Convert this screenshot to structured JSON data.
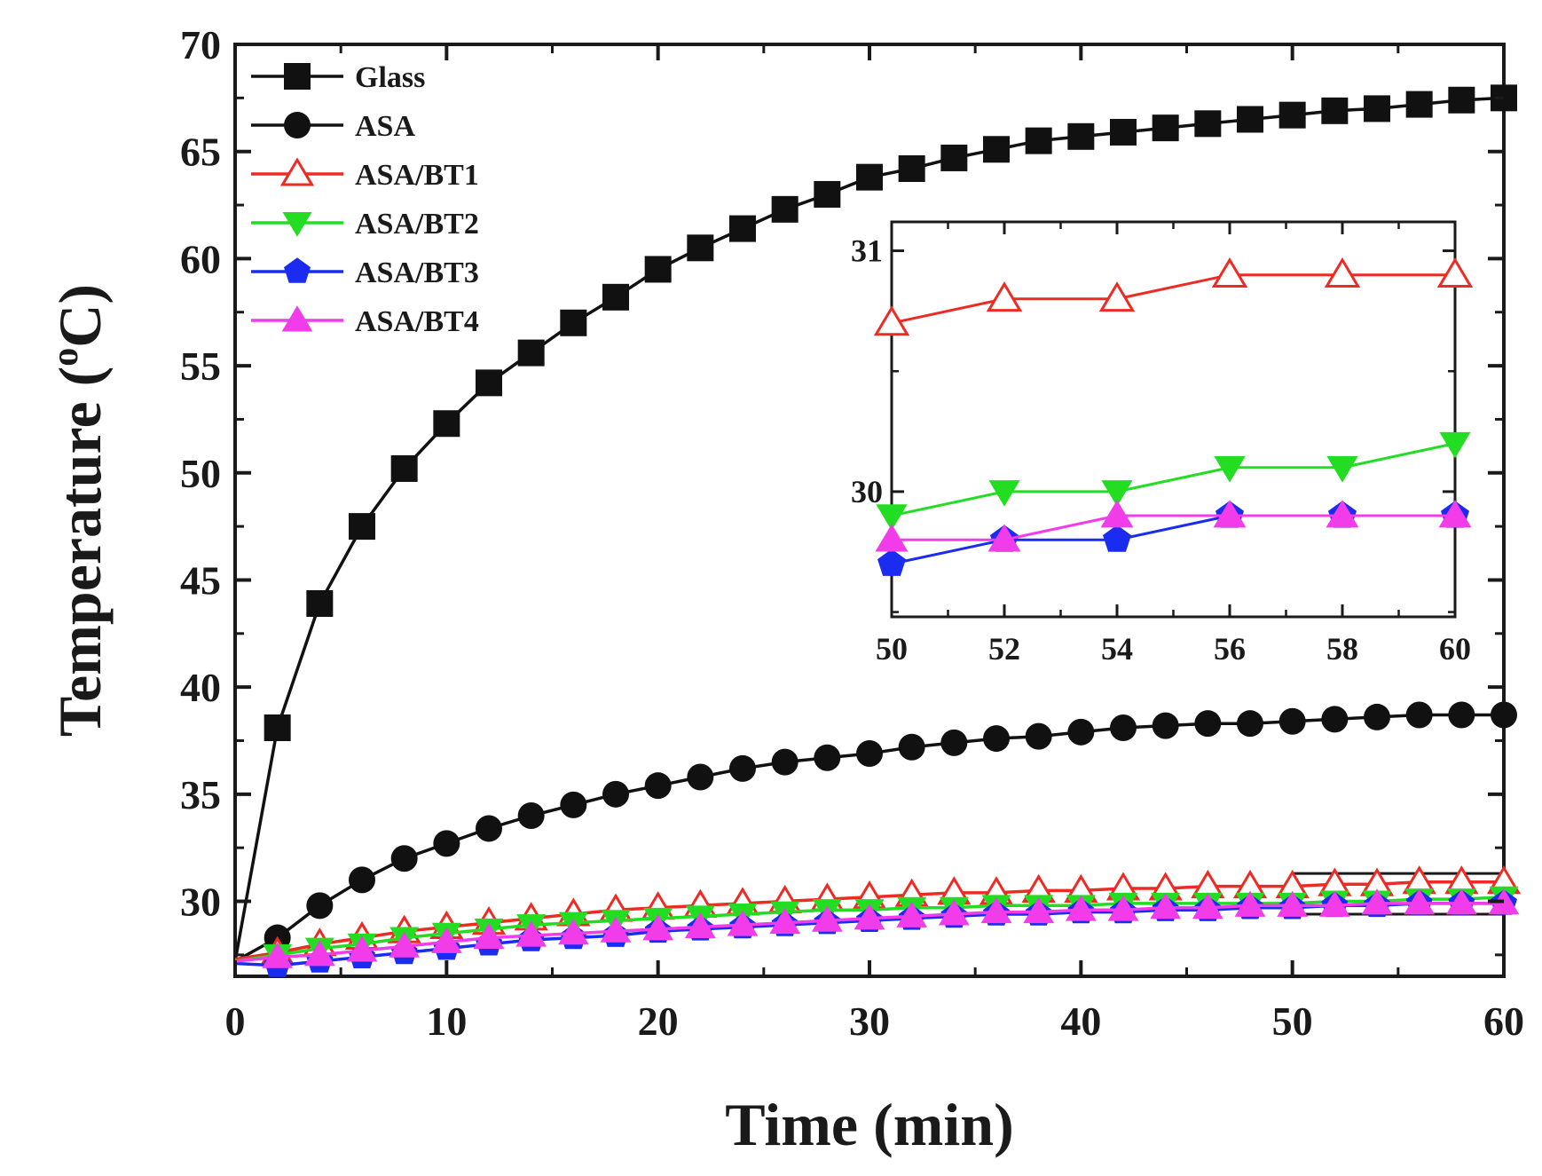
{
  "chart_data": {
    "type": "line",
    "title": "",
    "xlabel": "Time (min)",
    "ylabel": "Temperature (°C)",
    "ylabel_parts": {
      "main": "Temperature (",
      "sup": "o",
      "unit": "C)"
    },
    "xlim": [
      0,
      60
    ],
    "ylim": [
      26.5,
      70
    ],
    "x_ticks": [
      0,
      10,
      20,
      30,
      40,
      50,
      60
    ],
    "x_tick_labels": [
      "0",
      "10",
      "20",
      "30",
      "40",
      "50",
      "60"
    ],
    "y_ticks": [
      30,
      35,
      40,
      45,
      50,
      55,
      60,
      65,
      70
    ],
    "y_tick_labels": [
      "30",
      "35",
      "40",
      "45",
      "50",
      "55",
      "60",
      "65",
      "70"
    ],
    "legend_position": "top-left",
    "x": [
      0,
      2,
      4,
      6,
      8,
      10,
      12,
      14,
      16,
      18,
      20,
      22,
      24,
      26,
      28,
      30,
      32,
      34,
      36,
      38,
      40,
      42,
      44,
      46,
      48,
      50,
      52,
      54,
      56,
      58,
      60
    ],
    "series": [
      {
        "name": "Glass",
        "color": "#111111",
        "marker": "square",
        "values": [
          27.2,
          38.1,
          43.9,
          47.5,
          50.2,
          52.3,
          54.2,
          55.6,
          57.0,
          58.2,
          59.5,
          60.5,
          61.4,
          62.3,
          63.0,
          63.8,
          64.2,
          64.7,
          65.1,
          65.5,
          65.7,
          65.9,
          66.1,
          66.3,
          66.5,
          66.7,
          66.9,
          67.0,
          67.2,
          67.4,
          67.5
        ]
      },
      {
        "name": "ASA",
        "color": "#111111",
        "marker": "circle",
        "values": [
          27.2,
          28.3,
          29.8,
          31.0,
          32.0,
          32.7,
          33.4,
          34.0,
          34.5,
          35.0,
          35.4,
          35.8,
          36.2,
          36.5,
          36.7,
          36.9,
          37.2,
          37.4,
          37.6,
          37.7,
          37.9,
          38.1,
          38.2,
          38.3,
          38.3,
          38.4,
          38.5,
          38.6,
          38.7,
          38.7,
          38.7
        ]
      },
      {
        "name": "ASA/BT1",
        "color": "#ee2a24",
        "marker": "triangle-up-open",
        "values": [
          27.3,
          27.6,
          28.0,
          28.3,
          28.6,
          28.8,
          29.0,
          29.2,
          29.4,
          29.6,
          29.7,
          29.8,
          29.9,
          30.0,
          30.1,
          30.2,
          30.3,
          30.4,
          30.4,
          30.5,
          30.5,
          30.6,
          30.6,
          30.7,
          30.7,
          30.7,
          30.8,
          30.8,
          30.9,
          30.9,
          30.9
        ]
      },
      {
        "name": "ASA/BT2",
        "color": "#22dd22",
        "marker": "triangle-down",
        "values": [
          27.2,
          27.5,
          27.8,
          28.0,
          28.3,
          28.5,
          28.7,
          28.9,
          29.0,
          29.1,
          29.2,
          29.3,
          29.4,
          29.5,
          29.6,
          29.6,
          29.7,
          29.7,
          29.8,
          29.8,
          29.8,
          29.9,
          29.9,
          29.9,
          29.9,
          29.9,
          30.0,
          30.0,
          30.1,
          30.1,
          30.2
        ]
      },
      {
        "name": "ASA/BT3",
        "color": "#1a2cf0",
        "marker": "pentagon",
        "values": [
          27.1,
          27.0,
          27.2,
          27.4,
          27.6,
          27.8,
          28.0,
          28.2,
          28.3,
          28.4,
          28.6,
          28.7,
          28.8,
          28.9,
          29.0,
          29.1,
          29.2,
          29.3,
          29.4,
          29.4,
          29.5,
          29.5,
          29.6,
          29.6,
          29.7,
          29.7,
          29.8,
          29.8,
          29.9,
          29.9,
          29.9
        ]
      },
      {
        "name": "ASA/BT4",
        "color": "#f23ce9",
        "marker": "triangle-up",
        "values": [
          27.2,
          27.4,
          27.5,
          27.7,
          27.9,
          28.1,
          28.3,
          28.4,
          28.5,
          28.6,
          28.7,
          28.8,
          28.9,
          29.0,
          29.1,
          29.2,
          29.3,
          29.4,
          29.5,
          29.5,
          29.6,
          29.6,
          29.7,
          29.7,
          29.8,
          29.8,
          29.8,
          29.9,
          29.9,
          29.9,
          29.9
        ]
      }
    ],
    "highlight_box": {
      "x_range": [
        50,
        60
      ],
      "y_range": [
        29.4,
        31.3
      ]
    },
    "inset": {
      "xlim": [
        50,
        60
      ],
      "ylim": [
        29.48,
        31.12
      ],
      "x_ticks": [
        50,
        52,
        54,
        56,
        58,
        60
      ],
      "x_tick_labels": [
        "50",
        "52",
        "54",
        "56",
        "58",
        "60"
      ],
      "y_ticks": [
        30,
        31
      ],
      "y_tick_labels": [
        "30",
        "31"
      ],
      "x": [
        50,
        52,
        54,
        56,
        58,
        60
      ],
      "series": [
        {
          "name": "ASA/BT1",
          "color": "#ee2a24",
          "marker": "triangle-up-open",
          "values": [
            30.7,
            30.8,
            30.8,
            30.9,
            30.9,
            30.9
          ]
        },
        {
          "name": "ASA/BT2",
          "color": "#22dd22",
          "marker": "triangle-down",
          "values": [
            29.9,
            30.0,
            30.0,
            30.1,
            30.1,
            30.2
          ]
        },
        {
          "name": "ASA/BT3",
          "color": "#1a2cf0",
          "marker": "pentagon",
          "values": [
            29.7,
            29.8,
            29.8,
            29.9,
            29.9,
            29.9
          ]
        },
        {
          "name": "ASA/BT4",
          "color": "#f23ce9",
          "marker": "triangle-up",
          "values": [
            29.8,
            29.8,
            29.9,
            29.9,
            29.9,
            29.9
          ]
        }
      ]
    }
  }
}
